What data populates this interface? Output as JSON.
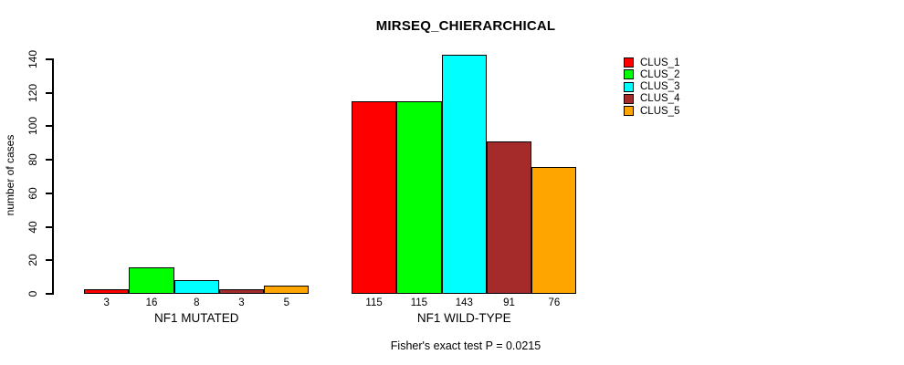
{
  "title": "MIRSEQ_CHIERARCHICAL",
  "footer": "Fisher's exact test P = 0.0215",
  "chart_data": {
    "type": "bar",
    "title": "MIRSEQ_CHIERARCHICAL",
    "xlabel": "",
    "ylabel": "number of cases",
    "ylim": [
      0,
      140
    ],
    "yticks": [
      0,
      20,
      40,
      60,
      80,
      100,
      120,
      140
    ],
    "grid": false,
    "legend_position": "right",
    "series_names": [
      "CLUS_1",
      "CLUS_2",
      "CLUS_3",
      "CLUS_4",
      "CLUS_5"
    ],
    "colors": [
      "#FF0000",
      "#00FF00",
      "#00FFFF",
      "#A52A2A",
      "#FFA500"
    ],
    "bar_border_color": "#000000",
    "groups": [
      {
        "label": "NF1 MUTATED",
        "values": [
          3,
          16,
          8,
          3,
          5
        ]
      },
      {
        "label": "NF1 WILD-TYPE",
        "values": [
          115,
          115,
          143,
          91,
          76
        ]
      }
    ],
    "annotation": "Fisher's exact test P = 0.0215"
  }
}
